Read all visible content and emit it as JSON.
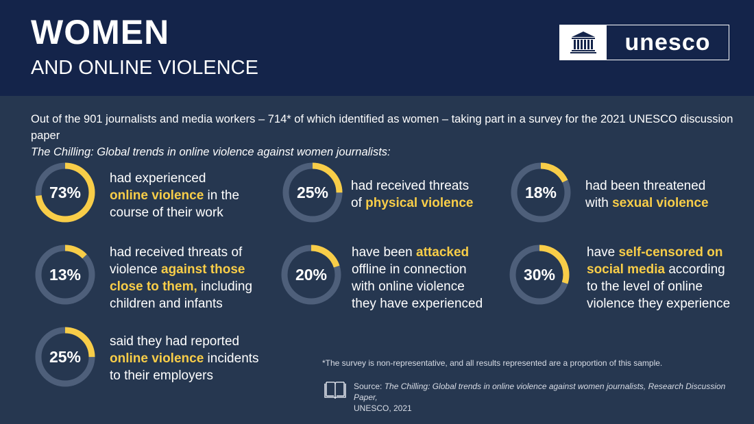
{
  "header": {
    "title": "WOMEN",
    "subtitle": "AND ONLINE VIOLENCE",
    "logo_text": "unesco",
    "logo_icon": "unesco-temple-icon"
  },
  "intro": {
    "line1": "Out of the 901 journalists and media workers – 714* of which identified as women – taking part in a survey for the 2021 UNESCO discussion paper",
    "line2": "The Chilling: Global trends in online violence against women journalists:"
  },
  "colors": {
    "background": "#263750",
    "header": "#14244a",
    "accent": "#f8cd48",
    "ring_track": "#4e5f7a"
  },
  "stats": [
    {
      "percent": "73%",
      "value": 73,
      "pre": "had experienced",
      "hl": "online violence",
      "post1": " in the",
      "post2": "course of their work"
    },
    {
      "percent": "25%",
      "value": 25,
      "pre": "had received threats",
      "pre2": "of ",
      "hl": "physical violence"
    },
    {
      "percent": "18%",
      "value": 18,
      "pre": "had been threatened",
      "pre2": "with ",
      "hl": "sexual violence"
    },
    {
      "percent": "13%",
      "value": 13,
      "pre": "had received threats of",
      "pre2": "violence ",
      "hl": "against those",
      "hl2": "close to them,",
      "post1": " including",
      "post2": "children and infants"
    },
    {
      "percent": "20%",
      "value": 20,
      "pre": "have been ",
      "hl": "attacked",
      "post1": "offline in connection",
      "post2": "with online violence",
      "post3": "they have experienced"
    },
    {
      "percent": "30%",
      "value": 30,
      "pre": "have ",
      "hl": "self-censored on",
      "hl2": "social media",
      "post1": " according",
      "post2": "to the level of online",
      "post3": "violence they experience"
    },
    {
      "percent": "25%",
      "value": 25,
      "pre": "said they had reported",
      "hl": "online violence",
      "post1": " incidents",
      "post2": "to their employers"
    }
  ],
  "footnote": "*The survey is non-representative, and all results represented are a proportion of this sample.",
  "source": {
    "label": "Source: ",
    "title": "The Chilling: Global trends in online violence against women journalists, Research Discussion Paper,",
    "tail": "UNESCO, 2021",
    "icon": "book-icon"
  }
}
